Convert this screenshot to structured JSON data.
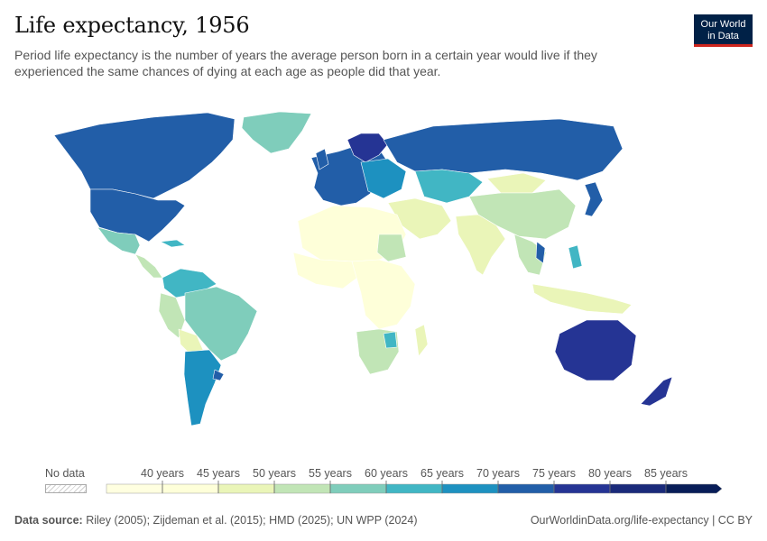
{
  "header": {
    "title": "Life expectancy, 1956",
    "subtitle": "Period life expectancy is the number of years the average person born in a certain year would live if they experienced the same chances of dying at each age as people did that year."
  },
  "logo": {
    "line1": "Our World",
    "line2": "in Data"
  },
  "legend": {
    "no_data_label": "No data",
    "bins": [
      {
        "label": "40 years",
        "color": "#feffd9"
      },
      {
        "label": "45 years",
        "color": "#eaf5b8"
      },
      {
        "label": "50 years",
        "color": "#c1e5b6"
      },
      {
        "label": "55 years",
        "color": "#7fcdbb"
      },
      {
        "label": "60 years",
        "color": "#41b6c4"
      },
      {
        "label": "65 years",
        "color": "#1d91c0"
      },
      {
        "label": "70 years",
        "color": "#225ea8"
      },
      {
        "label": "75 years",
        "color": "#253494"
      },
      {
        "label": "80 years",
        "color": "#1a2a7a"
      },
      {
        "label": "85 years",
        "color": "#081d58"
      }
    ],
    "first_color": "#ffffe0"
  },
  "footer": {
    "source_label": "Data source:",
    "source_text": "Riley (2005); Zijdeman et al. (2015); HMD (2025); UN WPP (2024)",
    "url_text": "OurWorldinData.org/life-expectancy | CC BY"
  }
}
